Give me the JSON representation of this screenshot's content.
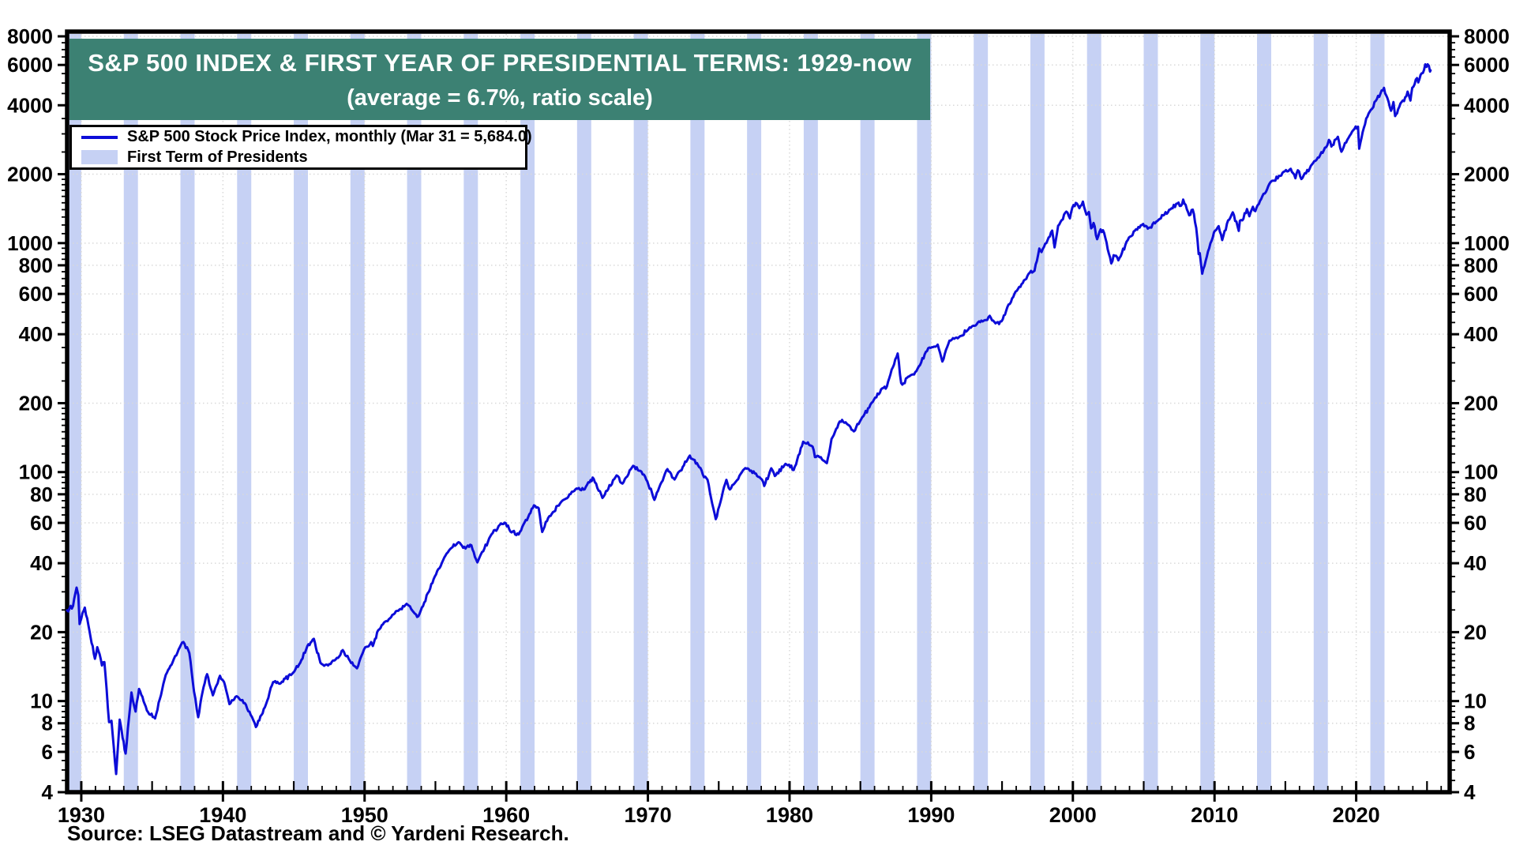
{
  "title": {
    "line1": "S&P 500 INDEX & FIRST YEAR OF PRESIDENTIAL TERMS: 1929-now",
    "line2": "(average = 6.7%, ratio scale)",
    "bg_color": "#3C8173",
    "text_color": "#ffffff"
  },
  "legend": {
    "items": [
      {
        "label": "S&P 500 Stock Price Index, monthly (Mar 31 = 5,684.0)",
        "swatch": "line"
      },
      {
        "label": "First Term of Presidents",
        "swatch": "band"
      }
    ]
  },
  "source": {
    "text": "Source: LSEG Datastream and © Yardeni Research."
  },
  "chart_data": {
    "type": "line",
    "title": "S&P 500 INDEX & FIRST YEAR OF PRESIDENTIAL TERMS: 1929-now",
    "subtitle": "(average = 6.7%, ratio scale)",
    "colors": {
      "line": "#0D0DD8",
      "band": "#C6D1F4",
      "title_bg": "#3C8173",
      "grid": "#D9D9D9",
      "axis": "#000000"
    },
    "y_axis": {
      "scale": "log",
      "range": [
        4,
        8000
      ],
      "tick_labels": [
        4,
        6,
        8,
        10,
        20,
        40,
        60,
        80,
        100,
        200,
        400,
        600,
        800,
        1000,
        2000,
        4000,
        6000,
        8000
      ],
      "sides": [
        "left",
        "right"
      ],
      "grid": "dotted"
    },
    "x_axis": {
      "range": [
        1929,
        2026.6
      ],
      "tick_labels": [
        1930,
        1940,
        1950,
        1960,
        1970,
        1980,
        1990,
        2000,
        2010,
        2020
      ],
      "minor_tick_every_years": 1,
      "grid": "dotted-at-decades"
    },
    "president_first_term_years": [
      1929,
      1933,
      1937,
      1941,
      1945,
      1949,
      1953,
      1957,
      1961,
      1965,
      1969,
      1973,
      1977,
      1981,
      1985,
      1989,
      1993,
      1997,
      2001,
      2005,
      2009,
      2013,
      2017,
      2021
    ],
    "series": [
      {
        "name": "S&P 500 Stock Price Index, monthly",
        "last_point_label": "Mar 31 = 5,684.0",
        "points": [
          [
            1929.0,
            24.9
          ],
          [
            1929.17,
            25.4
          ],
          [
            1929.42,
            26.0
          ],
          [
            1929.67,
            31.3
          ],
          [
            1929.79,
            29.0
          ],
          [
            1929.88,
            21.7
          ],
          [
            1930.0,
            22.9
          ],
          [
            1930.25,
            25.6
          ],
          [
            1930.5,
            21.5
          ],
          [
            1930.96,
            15.3
          ],
          [
            1931.13,
            17.2
          ],
          [
            1931.46,
            14.3
          ],
          [
            1931.63,
            14.8
          ],
          [
            1931.79,
            11.2
          ],
          [
            1931.96,
            8.1
          ],
          [
            1932.13,
            8.2
          ],
          [
            1932.46,
            4.8
          ],
          [
            1932.71,
            8.3
          ],
          [
            1932.92,
            6.9
          ],
          [
            1933.13,
            5.9
          ],
          [
            1933.54,
            10.9
          ],
          [
            1933.83,
            9.0
          ],
          [
            1934.08,
            11.3
          ],
          [
            1934.63,
            9.1
          ],
          [
            1935.21,
            8.4
          ],
          [
            1935.96,
            13.0
          ],
          [
            1936.96,
            17.2
          ],
          [
            1937.21,
            18.1
          ],
          [
            1937.63,
            16.2
          ],
          [
            1937.96,
            11.0
          ],
          [
            1938.25,
            8.5
          ],
          [
            1938.63,
            11.5
          ],
          [
            1938.88,
            13.1
          ],
          [
            1939.29,
            10.6
          ],
          [
            1939.79,
            12.9
          ],
          [
            1940.08,
            12.1
          ],
          [
            1940.46,
            9.7
          ],
          [
            1940.96,
            10.5
          ],
          [
            1941.54,
            9.8
          ],
          [
            1941.96,
            8.7
          ],
          [
            1942.33,
            7.7
          ],
          [
            1942.96,
            9.4
          ],
          [
            1943.54,
            12.1
          ],
          [
            1944.0,
            11.9
          ],
          [
            1944.96,
            13.3
          ],
          [
            1945.54,
            15.1
          ],
          [
            1945.96,
            17.4
          ],
          [
            1946.42,
            18.7
          ],
          [
            1946.88,
            14.7
          ],
          [
            1947.42,
            14.3
          ],
          [
            1947.96,
            15.2
          ],
          [
            1948.46,
            16.7
          ],
          [
            1948.96,
            15.0
          ],
          [
            1949.46,
            13.9
          ],
          [
            1949.96,
            16.8
          ],
          [
            1950.46,
            18.1
          ],
          [
            1950.58,
            17.4
          ],
          [
            1950.96,
            20.4
          ],
          [
            1951.79,
            23.0
          ],
          [
            1951.96,
            23.8
          ],
          [
            1952.96,
            26.6
          ],
          [
            1953.21,
            25.9
          ],
          [
            1953.71,
            23.3
          ],
          [
            1953.96,
            24.8
          ],
          [
            1954.96,
            35.0
          ],
          [
            1955.71,
            43.2
          ],
          [
            1955.96,
            45.5
          ],
          [
            1956.63,
            49.4
          ],
          [
            1956.96,
            46.7
          ],
          [
            1957.54,
            47.9
          ],
          [
            1957.96,
            40.3
          ],
          [
            1958.96,
            53.5
          ],
          [
            1959.63,
            59.7
          ],
          [
            1959.96,
            59.9
          ],
          [
            1960.29,
            55.0
          ],
          [
            1960.88,
            53.4
          ],
          [
            1961.96,
            71.6
          ],
          [
            1962.29,
            69.6
          ],
          [
            1962.54,
            54.8
          ],
          [
            1962.96,
            63.1
          ],
          [
            1963.96,
            75.0
          ],
          [
            1964.96,
            84.8
          ],
          [
            1965.54,
            84.1
          ],
          [
            1965.96,
            92.4
          ],
          [
            1966.17,
            93.5
          ],
          [
            1966.79,
            77.1
          ],
          [
            1967.79,
            96.7
          ],
          [
            1968.21,
            89.1
          ],
          [
            1968.96,
            106.5
          ],
          [
            1969.46,
            101.3
          ],
          [
            1969.96,
            91.1
          ],
          [
            1970.46,
            75.6
          ],
          [
            1970.96,
            90.3
          ],
          [
            1971.38,
            103.0
          ],
          [
            1971.88,
            92.8
          ],
          [
            1972.96,
            118.1
          ],
          [
            1973.13,
            114.2
          ],
          [
            1973.71,
            104.2
          ],
          [
            1973.96,
            95.0
          ],
          [
            1974.21,
            92.5
          ],
          [
            1974.79,
            62.3
          ],
          [
            1974.96,
            68.6
          ],
          [
            1975.54,
            92.5
          ],
          [
            1975.79,
            84.0
          ],
          [
            1976.79,
            102.9
          ],
          [
            1977.04,
            103.8
          ],
          [
            1977.96,
            93.8
          ],
          [
            1978.21,
            87.0
          ],
          [
            1978.71,
            103.9
          ],
          [
            1978.96,
            96.1
          ],
          [
            1979.71,
            108.6
          ],
          [
            1979.96,
            107.8
          ],
          [
            1980.29,
            102.1
          ],
          [
            1980.96,
            135.7
          ],
          [
            1981.63,
            129.1
          ],
          [
            1981.79,
            116.2
          ],
          [
            1982.04,
            117.3
          ],
          [
            1982.63,
            109.4
          ],
          [
            1982.96,
            139.4
          ],
          [
            1983.54,
            166.4
          ],
          [
            1983.96,
            164.9
          ],
          [
            1984.54,
            150.6
          ],
          [
            1984.96,
            166.3
          ],
          [
            1985.96,
            207.3
          ],
          [
            1986.71,
            236.1
          ],
          [
            1986.79,
            231.3
          ],
          [
            1986.96,
            248.6
          ],
          [
            1987.63,
            329.4
          ],
          [
            1987.88,
            245.0
          ],
          [
            1987.96,
            240.9
          ],
          [
            1988.46,
            262.2
          ],
          [
            1988.96,
            276.5
          ],
          [
            1989.79,
            347.4
          ],
          [
            1989.96,
            348.6
          ],
          [
            1990.46,
            360.0
          ],
          [
            1990.79,
            304.0
          ],
          [
            1990.96,
            328.8
          ],
          [
            1991.29,
            375.2
          ],
          [
            1991.96,
            388.5
          ],
          [
            1992.96,
            435.6
          ],
          [
            1993.96,
            461.8
          ],
          [
            1994.13,
            481.6
          ],
          [
            1994.54,
            446.1
          ],
          [
            1994.96,
            455.2
          ],
          [
            1995.96,
            614.6
          ],
          [
            1996.46,
            669.1
          ],
          [
            1996.96,
            743.3
          ],
          [
            1997.29,
            757.1
          ],
          [
            1997.63,
            947.1
          ],
          [
            1997.79,
            914.6
          ],
          [
            1997.96,
            962.4
          ],
          [
            1998.54,
            1133.8
          ],
          [
            1998.71,
            957.3
          ],
          [
            1998.96,
            1190.1
          ],
          [
            1999.54,
            1372.7
          ],
          [
            1999.79,
            1282.7
          ],
          [
            1999.96,
            1428.7
          ],
          [
            2000.21,
            1498.6
          ],
          [
            2000.46,
            1420.6
          ],
          [
            2000.71,
            1517.7
          ],
          [
            2000.96,
            1330.9
          ],
          [
            2001.13,
            1366.0
          ],
          [
            2001.29,
            1160.3
          ],
          [
            2001.46,
            1224.4
          ],
          [
            2001.71,
            1040.9
          ],
          [
            2001.96,
            1148.1
          ],
          [
            2002.21,
            1106.7
          ],
          [
            2002.71,
            815.3
          ],
          [
            2002.88,
            885.8
          ],
          [
            2002.96,
            879.8
          ],
          [
            2003.21,
            841.2
          ],
          [
            2003.96,
            1058.2
          ],
          [
            2004.96,
            1211.9
          ],
          [
            2005.29,
            1156.9
          ],
          [
            2005.96,
            1248.3
          ],
          [
            2006.96,
            1418.3
          ],
          [
            2007.46,
            1503.4
          ],
          [
            2007.63,
            1455.3
          ],
          [
            2007.79,
            1549.4
          ],
          [
            2007.96,
            1468.4
          ],
          [
            2008.21,
            1322.7
          ],
          [
            2008.46,
            1400.4
          ],
          [
            2008.71,
            1164.7
          ],
          [
            2008.88,
            896.2
          ],
          [
            2008.96,
            903.3
          ],
          [
            2009.13,
            735.1
          ],
          [
            2009.54,
            919.3
          ],
          [
            2009.96,
            1115.1
          ],
          [
            2010.29,
            1186.7
          ],
          [
            2010.54,
            1030.7
          ],
          [
            2010.96,
            1257.6
          ],
          [
            2011.29,
            1363.6
          ],
          [
            2011.71,
            1131.4
          ],
          [
            2011.79,
            1253.3
          ],
          [
            2011.96,
            1257.6
          ],
          [
            2012.29,
            1408.5
          ],
          [
            2012.46,
            1310.3
          ],
          [
            2012.71,
            1440.7
          ],
          [
            2012.88,
            1380.0
          ],
          [
            2012.96,
            1426.2
          ],
          [
            2013.96,
            1848.4
          ],
          [
            2014.71,
            1972.3
          ],
          [
            2014.96,
            2058.9
          ],
          [
            2015.38,
            2111.9
          ],
          [
            2015.71,
            1920.0
          ],
          [
            2015.88,
            2080.4
          ],
          [
            2016.13,
            1904.4
          ],
          [
            2016.96,
            2238.8
          ],
          [
            2017.96,
            2673.6
          ],
          [
            2018.08,
            2823.8
          ],
          [
            2018.25,
            2640.9
          ],
          [
            2018.71,
            2914.0
          ],
          [
            2018.96,
            2506.9
          ],
          [
            2019.54,
            2941.8
          ],
          [
            2019.96,
            3230.8
          ],
          [
            2020.13,
            3225.5
          ],
          [
            2020.21,
            2584.6
          ],
          [
            2020.71,
            3500.3
          ],
          [
            2020.96,
            3756.1
          ],
          [
            2021.38,
            4181.2
          ],
          [
            2021.96,
            4766.2
          ],
          [
            2022.04,
            4515.6
          ],
          [
            2022.29,
            4131.9
          ],
          [
            2022.46,
            3785.4
          ],
          [
            2022.63,
            4130.3
          ],
          [
            2022.75,
            3585.6
          ],
          [
            2022.96,
            3839.5
          ],
          [
            2023.13,
            4076.6
          ],
          [
            2023.38,
            4169.5
          ],
          [
            2023.63,
            4588.9
          ],
          [
            2023.83,
            4193.8
          ],
          [
            2023.96,
            4769.8
          ],
          [
            2024.29,
            5254.3
          ],
          [
            2024.38,
            5035.7
          ],
          [
            2024.63,
            5522.3
          ],
          [
            2024.79,
            5705.5
          ],
          [
            2024.88,
            6032.4
          ],
          [
            2024.96,
            5881.6
          ],
          [
            2025.04,
            6040.5
          ],
          [
            2025.13,
            5954.5
          ],
          [
            2025.21,
            5612.0
          ],
          [
            2025.25,
            5684.0
          ]
        ]
      }
    ]
  }
}
